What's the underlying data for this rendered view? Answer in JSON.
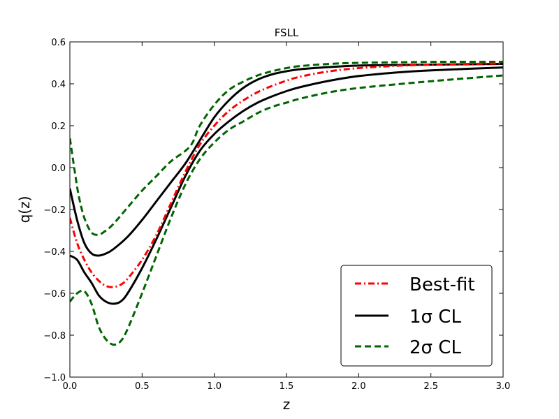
{
  "chart_data": {
    "type": "line",
    "title": "FSLL",
    "xlabel": "z",
    "ylabel": "q(z)",
    "xlim": [
      0.0,
      3.0
    ],
    "ylim": [
      -1.0,
      0.6
    ],
    "x_ticks": [
      "0.0",
      "0.5",
      "1.0",
      "1.5",
      "2.0",
      "2.5",
      "3.0"
    ],
    "y_ticks": [
      "−1.0",
      "−0.8",
      "−0.6",
      "−0.4",
      "−0.2",
      "0.0",
      "0.2",
      "0.4",
      "0.6"
    ],
    "grid": false,
    "legend_position": "lower-right",
    "legend": [
      {
        "label": "Best-fit",
        "color": "#ff0000",
        "dash": "dash-dot"
      },
      {
        "label": "1σ CL",
        "color": "#000000",
        "dash": "solid"
      },
      {
        "label": "2σ CL",
        "color": "#006400",
        "dash": "dashed"
      }
    ],
    "series": [
      {
        "legend_entry": 0,
        "color": "#ff0000",
        "dash": "dash-dot",
        "x": [
          0.0,
          0.05,
          0.1,
          0.15,
          0.2,
          0.25,
          0.3,
          0.35,
          0.4,
          0.5,
          0.6,
          0.7,
          0.8,
          0.9,
          1.0,
          1.1,
          1.2,
          1.3,
          1.4,
          1.5,
          1.6,
          1.8,
          2.0,
          2.3,
          2.6,
          3.0
        ],
        "y": [
          -0.24,
          -0.36,
          -0.44,
          -0.5,
          -0.54,
          -0.565,
          -0.57,
          -0.56,
          -0.53,
          -0.44,
          -0.32,
          -0.17,
          -0.02,
          0.11,
          0.2,
          0.27,
          0.32,
          0.36,
          0.39,
          0.415,
          0.435,
          0.46,
          0.475,
          0.487,
          0.493,
          0.497
        ]
      },
      {
        "legend_entry": 1,
        "color": "#000000",
        "dash": "solid",
        "x": [
          0.0,
          0.05,
          0.1,
          0.15,
          0.2,
          0.25,
          0.3,
          0.4,
          0.5,
          0.6,
          0.7,
          0.8,
          0.9,
          1.0,
          1.1,
          1.2,
          1.3,
          1.4,
          1.5,
          1.6,
          1.8,
          2.0,
          2.3,
          2.6,
          3.0
        ],
        "y": [
          -0.1,
          -0.25,
          -0.36,
          -0.41,
          -0.42,
          -0.41,
          -0.39,
          -0.33,
          -0.25,
          -0.16,
          -0.07,
          0.02,
          0.13,
          0.24,
          0.32,
          0.38,
          0.42,
          0.445,
          0.46,
          0.47,
          0.48,
          0.487,
          0.49,
          0.492,
          0.495
        ]
      },
      {
        "legend_entry": 1,
        "color": "#000000",
        "dash": "solid",
        "x": [
          0.0,
          0.05,
          0.1,
          0.15,
          0.2,
          0.25,
          0.3,
          0.35,
          0.4,
          0.5,
          0.6,
          0.7,
          0.8,
          0.9,
          1.0,
          1.1,
          1.2,
          1.3,
          1.4,
          1.5,
          1.6,
          1.8,
          2.0,
          2.3,
          2.6,
          3.0
        ],
        "y": [
          -0.42,
          -0.44,
          -0.5,
          -0.55,
          -0.61,
          -0.64,
          -0.65,
          -0.64,
          -0.6,
          -0.48,
          -0.34,
          -0.19,
          -0.04,
          0.08,
          0.16,
          0.22,
          0.27,
          0.31,
          0.34,
          0.365,
          0.385,
          0.415,
          0.437,
          0.456,
          0.467,
          0.478
        ]
      },
      {
        "legend_entry": 2,
        "color": "#006400",
        "dash": "dashed",
        "x": [
          0.0,
          0.03,
          0.06,
          0.1,
          0.15,
          0.2,
          0.25,
          0.3,
          0.4,
          0.5,
          0.6,
          0.7,
          0.8,
          0.85,
          0.9,
          1.0,
          1.1,
          1.2,
          1.3,
          1.4,
          1.5,
          1.6,
          1.8,
          2.0,
          2.3,
          2.6,
          3.0
        ],
        "y": [
          0.14,
          0.0,
          -0.13,
          -0.24,
          -0.31,
          -0.32,
          -0.3,
          -0.27,
          -0.19,
          -0.11,
          -0.04,
          0.03,
          0.08,
          0.12,
          0.2,
          0.3,
          0.37,
          0.41,
          0.44,
          0.46,
          0.475,
          0.485,
          0.495,
          0.5,
          0.503,
          0.505,
          0.505
        ]
      },
      {
        "legend_entry": 2,
        "color": "#006400",
        "dash": "dashed",
        "x": [
          0.0,
          0.05,
          0.1,
          0.15,
          0.2,
          0.25,
          0.3,
          0.35,
          0.4,
          0.5,
          0.6,
          0.7,
          0.8,
          0.9,
          1.0,
          1.1,
          1.2,
          1.3,
          1.4,
          1.5,
          1.6,
          1.8,
          2.0,
          2.3,
          2.6,
          3.0
        ],
        "y": [
          -0.64,
          -0.6,
          -0.59,
          -0.65,
          -0.76,
          -0.82,
          -0.845,
          -0.83,
          -0.77,
          -0.6,
          -0.42,
          -0.24,
          -0.08,
          0.04,
          0.12,
          0.18,
          0.22,
          0.26,
          0.29,
          0.31,
          0.33,
          0.36,
          0.38,
          0.4,
          0.418,
          0.44
        ]
      }
    ]
  }
}
